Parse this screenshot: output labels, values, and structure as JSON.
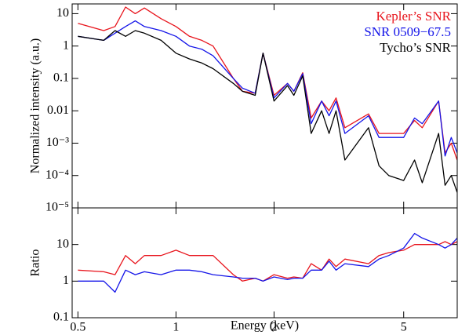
{
  "chart_data": [
    {
      "type": "line",
      "y_label": "Normalized intensity (a.u.)",
      "log_x": true,
      "log_y": true,
      "legend": "upper right",
      "x": [
        0.5,
        0.6,
        0.65,
        0.7,
        0.75,
        0.8,
        0.9,
        1.0,
        1.1,
        1.2,
        1.3,
        1.5,
        1.6,
        1.75,
        1.85,
        2.0,
        2.2,
        2.3,
        2.45,
        2.6,
        2.8,
        2.95,
        3.1,
        3.3,
        3.9,
        4.2,
        4.5,
        5.0,
        5.4,
        5.7,
        6.4,
        6.7,
        7.0,
        7.3
      ],
      "xlim": [
        0.48,
        7.3
      ],
      "xticks": [
        0.5,
        1,
        2,
        5
      ],
      "ylim": [
        1e-05,
        20
      ],
      "yticks": [
        {
          "value": 1e-05,
          "label": "10⁻⁵"
        },
        {
          "value": 0.0001,
          "label": "10⁻⁴"
        },
        {
          "value": 0.001,
          "label": "10⁻³"
        },
        0.01,
        0.1,
        1,
        10
      ],
      "series": [
        {
          "name": "Kepler’s SNR",
          "color": "#e8141c",
          "values": [
            5,
            3,
            4,
            16,
            10,
            15,
            7,
            4,
            2,
            1.5,
            1,
            0.1,
            0.04,
            0.035,
            0.6,
            0.03,
            0.07,
            0.04,
            0.15,
            0.006,
            0.02,
            0.01,
            0.025,
            0.003,
            0.008,
            0.002,
            0.002,
            0.002,
            0.005,
            0.003,
            0.02,
            0.0005,
            0.001,
            0.0003
          ]
        },
        {
          "name": "SNR 0509−67.5",
          "color": "#1414e8",
          "values": [
            2,
            1.5,
            2.5,
            4,
            6,
            4,
            3,
            2,
            1,
            0.8,
            0.5,
            0.1,
            0.05,
            0.035,
            0.6,
            0.025,
            0.07,
            0.04,
            0.14,
            0.004,
            0.02,
            0.007,
            0.02,
            0.002,
            0.007,
            0.0015,
            0.0015,
            0.0015,
            0.006,
            0.004,
            0.02,
            0.0004,
            0.0015,
            0.0005
          ]
        },
        {
          "name": "Tycho’s SNR",
          "color": "#000000",
          "values": [
            2,
            1.5,
            3,
            2,
            3,
            2.5,
            1.5,
            0.6,
            0.4,
            0.3,
            0.2,
            0.07,
            0.04,
            0.03,
            0.6,
            0.02,
            0.06,
            0.03,
            0.12,
            0.002,
            0.01,
            0.002,
            0.01,
            0.0003,
            0.003,
            0.0002,
            0.0001,
            7e-05,
            0.0003,
            6e-05,
            0.002,
            5e-05,
            0.0001,
            3e-05
          ]
        }
      ]
    },
    {
      "type": "line",
      "y_label": "Ratio",
      "x_label": "Energy (keV)",
      "log_x": true,
      "log_y": true,
      "x": [
        0.5,
        0.6,
        0.65,
        0.7,
        0.75,
        0.8,
        0.9,
        1.0,
        1.1,
        1.2,
        1.3,
        1.5,
        1.6,
        1.75,
        1.85,
        2.0,
        2.2,
        2.3,
        2.45,
        2.6,
        2.8,
        2.95,
        3.1,
        3.3,
        3.9,
        4.2,
        4.5,
        5.0,
        5.4,
        5.7,
        6.4,
        6.7,
        7.0,
        7.3
      ],
      "xlim": [
        0.48,
        7.3
      ],
      "xticks": [
        0.5,
        1,
        2,
        5
      ],
      "ylim": [
        0.1,
        100
      ],
      "yticks": [
        0.1,
        1,
        10
      ],
      "series": [
        {
          "color": "#e8141c",
          "values": [
            2,
            1.8,
            1.5,
            5,
            3,
            5,
            5,
            7,
            5,
            5,
            5,
            1.5,
            1,
            1.2,
            1,
            1.5,
            1.2,
            1.3,
            1.2,
            3,
            2,
            4,
            2.5,
            4,
            3,
            5,
            6,
            7,
            10,
            10,
            10,
            12,
            10,
            12
          ]
        },
        {
          "color": "#1414e8",
          "values": [
            1,
            1,
            0.5,
            2,
            1.5,
            1.8,
            1.5,
            2,
            2,
            1.8,
            1.5,
            1.3,
            1.2,
            1.2,
            1,
            1.3,
            1.1,
            1.2,
            1.2,
            2,
            2,
            3.5,
            2,
            3,
            2.5,
            4,
            5,
            8,
            20,
            15,
            10,
            8,
            10,
            15
          ]
        }
      ]
    }
  ]
}
